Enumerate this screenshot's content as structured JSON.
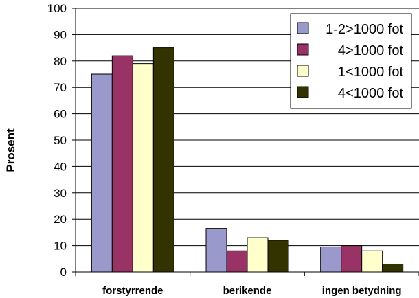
{
  "chart_data": {
    "type": "bar",
    "categories": [
      "forstyrrende",
      "berikende",
      "ingen betydning"
    ],
    "series": [
      {
        "name": "1-2>1000 fot",
        "color": "#9999cc",
        "values": [
          75,
          16.5,
          9.5
        ]
      },
      {
        "name": "4>1000 fot",
        "color": "#993366",
        "values": [
          82,
          8,
          10
        ]
      },
      {
        "name": "1<1000 fot",
        "color": "#ffffcc",
        "values": [
          79,
          13,
          8
        ]
      },
      {
        "name": "4<1000 fot",
        "color": "#333300",
        "values": [
          85,
          12,
          3
        ]
      }
    ],
    "ylabel": "Prosent",
    "xlabel": "",
    "ylim": [
      0,
      100
    ],
    "yticks": [
      0,
      10,
      20,
      30,
      40,
      50,
      60,
      70,
      80,
      90,
      100
    ],
    "grid": true,
    "legend_position": "top-right"
  }
}
